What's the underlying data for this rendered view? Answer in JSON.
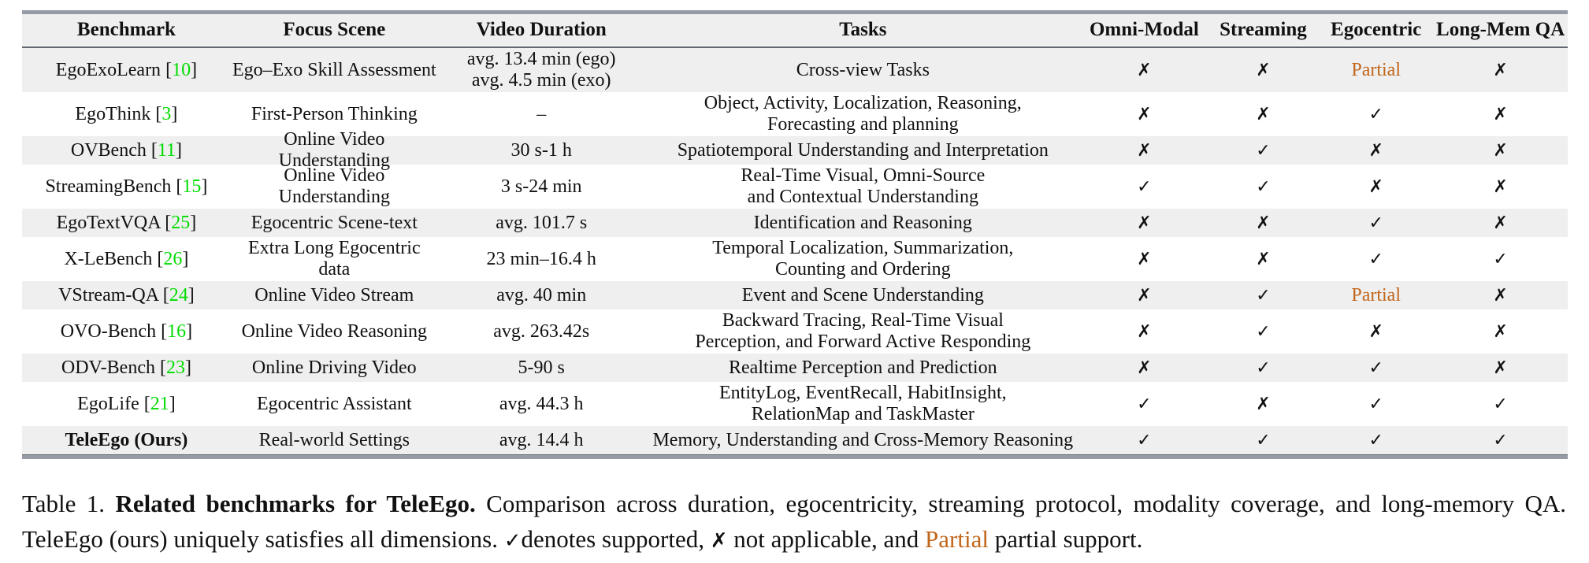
{
  "colors": {
    "citation_green": "#00dc00",
    "partial_orange": "#c1661b",
    "row_shade": "#efefef",
    "rule_gray": "#959ca6",
    "rule_dark": "#62676f"
  },
  "table": {
    "columns": [
      {
        "key": "benchmark",
        "label": "Benchmark"
      },
      {
        "key": "focus",
        "label": "Focus Scene"
      },
      {
        "key": "duration",
        "label": "Video Duration"
      },
      {
        "key": "tasks",
        "label": "Tasks"
      },
      {
        "key": "omni",
        "label": "Omni-Modal"
      },
      {
        "key": "stream",
        "label": "Streaming"
      },
      {
        "key": "ego",
        "label": "Egocentric"
      },
      {
        "key": "longmem",
        "label": "Long-Mem QA"
      }
    ],
    "marks": {
      "yes": "✓",
      "no": "✗",
      "partial": "Partial"
    },
    "rows": [
      {
        "benchmark": {
          "name": "EgoExoLearn",
          "cite": "10",
          "bold": false
        },
        "focus_scene": "Ego–Exo Skill Assessment",
        "video_duration": [
          "avg. 13.4 min (ego)",
          "avg. 4.5 min (exo)"
        ],
        "tasks": [
          "Cross-view Tasks"
        ],
        "omni_modal": "no",
        "streaming": "no",
        "egocentric": "partial",
        "long_mem_qa": "no",
        "shaded": true
      },
      {
        "benchmark": {
          "name": "EgoThink",
          "cite": "3",
          "bold": false
        },
        "focus_scene": "First-Person Thinking",
        "video_duration": [
          "–"
        ],
        "tasks": [
          "Object, Activity, Localization, Reasoning,",
          "Forecasting and planning"
        ],
        "omni_modal": "no",
        "streaming": "no",
        "egocentric": "yes",
        "long_mem_qa": "no",
        "shaded": false
      },
      {
        "benchmark": {
          "name": "OVBench",
          "cite": "11",
          "bold": false
        },
        "focus_scene": "Online Video Understanding",
        "video_duration": [
          "30 s-1 h"
        ],
        "tasks": [
          "Spatiotemporal Understanding and Interpretation"
        ],
        "omni_modal": "no",
        "streaming": "yes",
        "egocentric": "no",
        "long_mem_qa": "no",
        "shaded": true
      },
      {
        "benchmark": {
          "name": "StreamingBench",
          "cite": "15",
          "bold": false
        },
        "focus_scene": "Online Video Understanding",
        "video_duration": [
          "3 s-24 min"
        ],
        "tasks": [
          "Real-Time Visual, Omni-Source",
          "and Contextual Understanding"
        ],
        "omni_modal": "yes",
        "streaming": "yes",
        "egocentric": "no",
        "long_mem_qa": "no",
        "shaded": false
      },
      {
        "benchmark": {
          "name": "EgoTextVQA",
          "cite": "25",
          "bold": false
        },
        "focus_scene": "Egocentric Scene-text",
        "video_duration": [
          "avg. 101.7 s"
        ],
        "tasks": [
          "Identification and Reasoning"
        ],
        "omni_modal": "no",
        "streaming": "no",
        "egocentric": "yes",
        "long_mem_qa": "no",
        "shaded": true
      },
      {
        "benchmark": {
          "name": "X-LeBench",
          "cite": "26",
          "bold": false
        },
        "focus_scene": "Extra Long Egocentric data",
        "video_duration": [
          "23 min–16.4 h"
        ],
        "tasks": [
          "Temporal Localization, Summarization,",
          "Counting and Ordering"
        ],
        "omni_modal": "no",
        "streaming": "no",
        "egocentric": "yes",
        "long_mem_qa": "yes",
        "shaded": false
      },
      {
        "benchmark": {
          "name": "VStream-QA",
          "cite": "24",
          "bold": false
        },
        "focus_scene": "Online Video Stream",
        "video_duration": [
          "avg. 40 min"
        ],
        "tasks": [
          "Event and Scene Understanding"
        ],
        "omni_modal": "no",
        "streaming": "yes",
        "egocentric": "partial",
        "long_mem_qa": "no",
        "shaded": true
      },
      {
        "benchmark": {
          "name": "OVO-Bench",
          "cite": "16",
          "bold": false
        },
        "focus_scene": "Online Video Reasoning",
        "video_duration": [
          "avg. 263.42s"
        ],
        "tasks": [
          "Backward Tracing, Real-Time Visual",
          "Perception, and Forward Active Responding"
        ],
        "omni_modal": "no",
        "streaming": "yes",
        "egocentric": "no",
        "long_mem_qa": "no",
        "shaded": false
      },
      {
        "benchmark": {
          "name": "ODV-Bench",
          "cite": "23",
          "bold": false
        },
        "focus_scene": "Online Driving Video",
        "video_duration": [
          "5-90 s"
        ],
        "tasks": [
          "Realtime Perception and Prediction"
        ],
        "omni_modal": "no",
        "streaming": "yes",
        "egocentric": "yes",
        "long_mem_qa": "no",
        "shaded": true
      },
      {
        "benchmark": {
          "name": "EgoLife",
          "cite": "21",
          "bold": false
        },
        "focus_scene": "Egocentric Assistant",
        "video_duration": [
          "avg. 44.3 h"
        ],
        "tasks": [
          "EntityLog, EventRecall, HabitInsight,",
          "RelationMap and TaskMaster"
        ],
        "omni_modal": "yes",
        "streaming": "no",
        "egocentric": "yes",
        "long_mem_qa": "yes",
        "shaded": false
      },
      {
        "benchmark": {
          "name": "TeleEgo (Ours)",
          "cite": "",
          "bold": true
        },
        "focus_scene": "Real-world Settings",
        "video_duration": [
          "avg. 14.4 h"
        ],
        "tasks": [
          "Memory, Understanding and Cross-Memory Reasoning"
        ],
        "omni_modal": "yes",
        "streaming": "yes",
        "egocentric": "yes",
        "long_mem_qa": "yes",
        "shaded": true
      }
    ]
  },
  "caption": {
    "segments": [
      {
        "text": "Table 1. ",
        "style": "normal"
      },
      {
        "text": "Related benchmarks for TeleEgo.",
        "style": "bold"
      },
      {
        "text": " Comparison across duration, egocentricity, streaming protocol, modality coverage, and long-memory QA. TeleEgo (ours) uniquely satisfies all dimensions. ",
        "style": "normal"
      },
      {
        "text": "✓",
        "style": "check"
      },
      {
        "text": "denotes supported, ",
        "style": "normal"
      },
      {
        "text": "✗",
        "style": "cross"
      },
      {
        "text": " not applicable, and ",
        "style": "normal"
      },
      {
        "text": "Partial",
        "style": "partial"
      },
      {
        "text": " partial support.",
        "style": "normal"
      }
    ]
  }
}
